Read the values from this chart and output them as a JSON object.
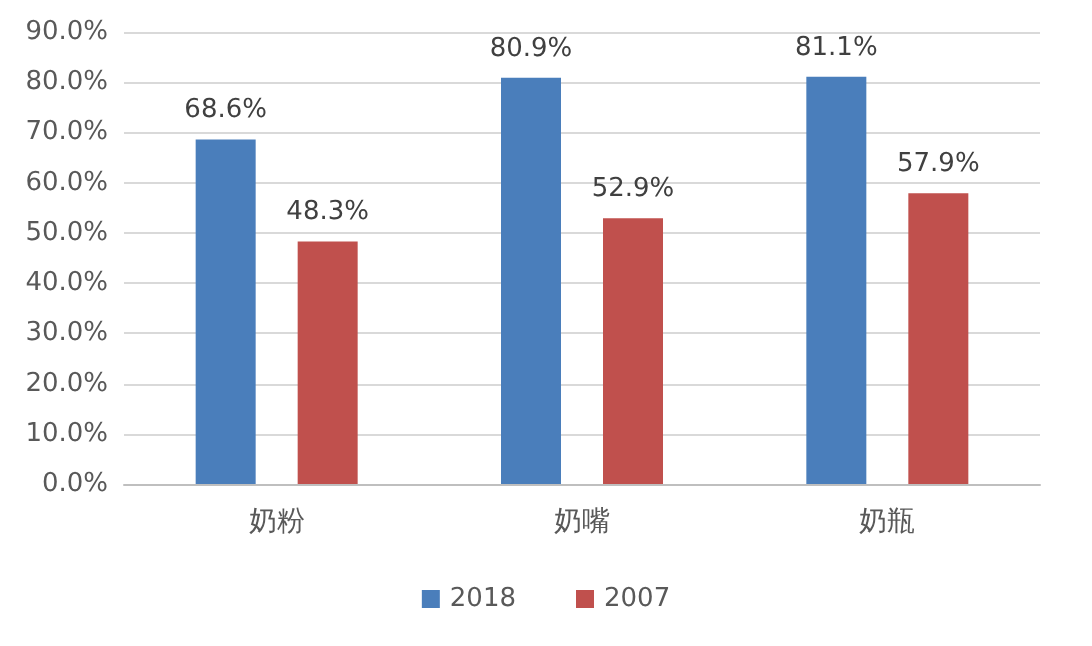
{
  "chart_data": {
    "type": "bar",
    "categories": [
      "奶粉",
      "奶嘴",
      "奶瓶"
    ],
    "series": [
      {
        "name": "2018",
        "color": "#4a7ebb",
        "values": [
          68.6,
          80.9,
          81.1
        ],
        "value_labels": [
          "68.6%",
          "80.9%",
          "81.1%"
        ]
      },
      {
        "name": "2007",
        "color": "#c0504d",
        "values": [
          48.3,
          52.9,
          57.9
        ],
        "value_labels": [
          "48.3%",
          "52.9%",
          "57.9%"
        ]
      }
    ],
    "ylim": [
      0,
      90
    ],
    "yticks": [
      {
        "value": 0,
        "label": "0.0%"
      },
      {
        "value": 10,
        "label": "10.0%"
      },
      {
        "value": 20,
        "label": "20.0%"
      },
      {
        "value": 30,
        "label": "30.0%"
      },
      {
        "value": 40,
        "label": "40.0%"
      },
      {
        "value": 50,
        "label": "50.0%"
      },
      {
        "value": 60,
        "label": "60.0%"
      },
      {
        "value": 70,
        "label": "70.0%"
      },
      {
        "value": 80,
        "label": "80.0%"
      },
      {
        "value": 90,
        "label": "90.0%"
      }
    ],
    "grid": "y",
    "legend": "bottom"
  }
}
